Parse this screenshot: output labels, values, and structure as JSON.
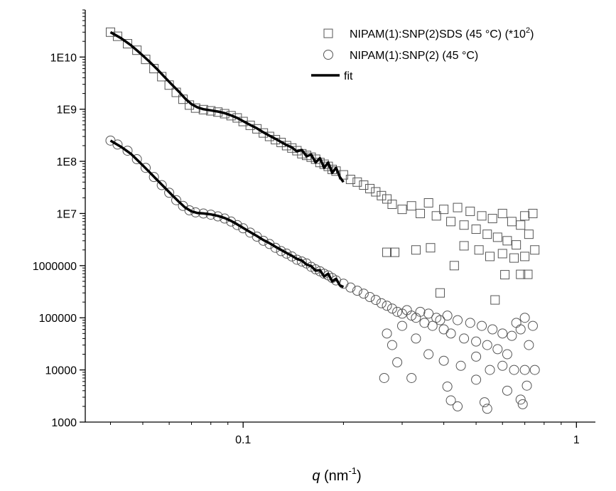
{
  "chart_data": {
    "type": "scatter",
    "title": "",
    "xlabel": {
      "symbol": "q",
      "unit_base": " (nm",
      "unit_exp": "-1",
      "unit_close": ")"
    },
    "ylabel": "",
    "x_scale": "log",
    "y_scale": "log",
    "xlim": [
      0.0336,
      1.14
    ],
    "ylim": [
      1000,
      80000000000
    ],
    "x_ticks": [
      {
        "value": 0.1,
        "label": "0.1"
      },
      {
        "value": 1,
        "label": "1"
      }
    ],
    "y_ticks": [
      {
        "value": 1000,
        "label": "1000"
      },
      {
        "value": 10000,
        "label": "10000"
      },
      {
        "value": 100000,
        "label": "100000"
      },
      {
        "value": 1000000,
        "label": "1000000"
      },
      {
        "value": 10000000,
        "label": "1E7"
      },
      {
        "value": 100000000,
        "label": "1E8"
      },
      {
        "value": 1000000000,
        "label": "1E9"
      },
      {
        "value": 10000000000,
        "label": "1E10"
      }
    ],
    "grid": false,
    "legend_position": "top-right",
    "series": [
      {
        "name_base": "NIPAM(1):SNP(2)SDS (45 °C) (*10",
        "name_exp": "2",
        "name_close": ")",
        "marker": "open-square",
        "points": [
          [
            0.04,
            30000000000.0
          ],
          [
            0.042,
            25000000000.0
          ],
          [
            0.045,
            18000000000.0
          ],
          [
            0.048,
            13500000000.0
          ],
          [
            0.051,
            9000000000.0
          ],
          [
            0.054,
            6000000000.0
          ],
          [
            0.057,
            4200000000.0
          ],
          [
            0.06,
            2900000000.0
          ],
          [
            0.063,
            2100000000.0
          ],
          [
            0.066,
            1550000000.0
          ],
          [
            0.069,
            1200000000.0
          ],
          [
            0.072,
            1050000000.0
          ],
          [
            0.076,
            980000000.0
          ],
          [
            0.08,
            930000000.0
          ],
          [
            0.084,
            880000000.0
          ],
          [
            0.088,
            820000000.0
          ],
          [
            0.092,
            750000000.0
          ],
          [
            0.096,
            680000000.0
          ],
          [
            0.1,
            580000000.0
          ],
          [
            0.105,
            490000000.0
          ],
          [
            0.11,
            420000000.0
          ],
          [
            0.115,
            350000000.0
          ],
          [
            0.12,
            300000000.0
          ],
          [
            0.125,
            260000000.0
          ],
          [
            0.13,
            230000000.0
          ],
          [
            0.135,
            200000000.0
          ],
          [
            0.14,
            180000000.0
          ],
          [
            0.145,
            160000000.0
          ],
          [
            0.15,
            140000000.0
          ],
          [
            0.155,
            130000000.0
          ],
          [
            0.16,
            120000000.0
          ],
          [
            0.165,
            110000000.0
          ],
          [
            0.17,
            95000000.0
          ],
          [
            0.175,
            88000000.0
          ],
          [
            0.18,
            80000000.0
          ],
          [
            0.185,
            70000000.0
          ],
          [
            0.19,
            65000000.0
          ],
          [
            0.2,
            55000000.0
          ],
          [
            0.21,
            45000000.0
          ],
          [
            0.22,
            40000000.0
          ],
          [
            0.23,
            35000000.0
          ],
          [
            0.24,
            30000000.0
          ],
          [
            0.25,
            26000000.0
          ],
          [
            0.26,
            22000000.0
          ],
          [
            0.27,
            19000000.0
          ],
          [
            0.28,
            15000000.0
          ],
          [
            0.3,
            12000000.0
          ],
          [
            0.32,
            14000000.0
          ],
          [
            0.34,
            10000000.0
          ],
          [
            0.36,
            16000000.0
          ],
          [
            0.38,
            9000000.0
          ],
          [
            0.4,
            12000000.0
          ],
          [
            0.42,
            7000000.0
          ],
          [
            0.44,
            13000000.0
          ],
          [
            0.46,
            6000000.0
          ],
          [
            0.48,
            11000000.0
          ],
          [
            0.5,
            5000000.0
          ],
          [
            0.52,
            9000000.0
          ],
          [
            0.54,
            4000000.0
          ],
          [
            0.56,
            8000000.0
          ],
          [
            0.58,
            3500000.0
          ],
          [
            0.6,
            10000000.0
          ],
          [
            0.62,
            3000000.0
          ],
          [
            0.64,
            7000000.0
          ],
          [
            0.66,
            2500000.0
          ],
          [
            0.68,
            6000000.0
          ],
          [
            0.7,
            9000000.0
          ],
          [
            0.72,
            4000000.0
          ],
          [
            0.74,
            10000000.0
          ],
          [
            0.27,
            1800000.0
          ],
          [
            0.285,
            1800000.0
          ],
          [
            0.33,
            2000000.0
          ],
          [
            0.365,
            2200000.0
          ],
          [
            0.46,
            2400000.0
          ],
          [
            0.51,
            2000000.0
          ],
          [
            0.55,
            1500000.0
          ],
          [
            0.6,
            1700000.0
          ],
          [
            0.65,
            1400000.0
          ],
          [
            0.7,
            1500000.0
          ],
          [
            0.75,
            2000000.0
          ],
          [
            0.43,
            1000000.0
          ],
          [
            0.39,
            300000.0
          ],
          [
            0.57,
            220000.0
          ],
          [
            0.61,
            670000.0
          ],
          [
            0.68,
            680000.0
          ],
          [
            0.715,
            680000.0
          ]
        ]
      },
      {
        "name": "NIPAM(1):SNP(2) (45 °C)",
        "marker": "open-circle",
        "points": [
          [
            0.04,
            250000000.0
          ],
          [
            0.042,
            210000000.0
          ],
          [
            0.045,
            160000000.0
          ],
          [
            0.048,
            110000000.0
          ],
          [
            0.051,
            75000000.0
          ],
          [
            0.054,
            50000000.0
          ],
          [
            0.057,
            35000000.0
          ],
          [
            0.06,
            25000000.0
          ],
          [
            0.063,
            18000000.0
          ],
          [
            0.066,
            14000000.0
          ],
          [
            0.069,
            11500000.0
          ],
          [
            0.072,
            10500000.0
          ],
          [
            0.076,
            10000000.0
          ],
          [
            0.08,
            9500000.0
          ],
          [
            0.084,
            8800000.0
          ],
          [
            0.088,
            8000000.0
          ],
          [
            0.092,
            7000000.0
          ],
          [
            0.096,
            6000000.0
          ],
          [
            0.1,
            5200000.0
          ],
          [
            0.105,
            4300000.0
          ],
          [
            0.11,
            3600000.0
          ],
          [
            0.115,
            3000000.0
          ],
          [
            0.12,
            2600000.0
          ],
          [
            0.125,
            2200000.0
          ],
          [
            0.13,
            1900000.0
          ],
          [
            0.135,
            1700000.0
          ],
          [
            0.14,
            1500000.0
          ],
          [
            0.145,
            1300000.0
          ],
          [
            0.15,
            1200000.0
          ],
          [
            0.155,
            1100000.0
          ],
          [
            0.16,
            950000.0
          ],
          [
            0.165,
            850000.0
          ],
          [
            0.17,
            780000.0
          ],
          [
            0.175,
            700000.0
          ],
          [
            0.18,
            650000.0
          ],
          [
            0.185,
            580000.0
          ],
          [
            0.19,
            520000.0
          ],
          [
            0.2,
            450000.0
          ],
          [
            0.21,
            380000.0
          ],
          [
            0.22,
            330000.0
          ],
          [
            0.23,
            290000.0
          ],
          [
            0.24,
            250000.0
          ],
          [
            0.25,
            220000.0
          ],
          [
            0.26,
            190000.0
          ],
          [
            0.27,
            170000.0
          ],
          [
            0.28,
            150000.0
          ],
          [
            0.29,
            130000.0
          ],
          [
            0.3,
            120000.0
          ],
          [
            0.31,
            140000.0
          ],
          [
            0.32,
            110000.0
          ],
          [
            0.33,
            100000.0
          ],
          [
            0.34,
            130000.0
          ],
          [
            0.35,
            80000.0
          ],
          [
            0.36,
            120000.0
          ],
          [
            0.37,
            70000.0
          ],
          [
            0.38,
            100000.0
          ],
          [
            0.39,
            90000.0
          ],
          [
            0.4,
            60000.0
          ],
          [
            0.41,
            110000.0
          ],
          [
            0.42,
            50000.0
          ],
          [
            0.44,
            90000.0
          ],
          [
            0.46,
            40000.0
          ],
          [
            0.48,
            80000.0
          ],
          [
            0.5,
            35000.0
          ],
          [
            0.52,
            70000.0
          ],
          [
            0.54,
            30000.0
          ],
          [
            0.56,
            60000.0
          ],
          [
            0.58,
            25000.0
          ],
          [
            0.6,
            50000.0
          ],
          [
            0.62,
            20000.0
          ],
          [
            0.64,
            45000.0
          ],
          [
            0.66,
            80000.0
          ],
          [
            0.68,
            60000.0
          ],
          [
            0.7,
            100000.0
          ],
          [
            0.72,
            30000.0
          ],
          [
            0.74,
            70000.0
          ],
          [
            0.27,
            50000.0
          ],
          [
            0.28,
            30000.0
          ],
          [
            0.3,
            70000.0
          ],
          [
            0.33,
            40000.0
          ],
          [
            0.36,
            20000.0
          ],
          [
            0.4,
            15000.0
          ],
          [
            0.45,
            12000.0
          ],
          [
            0.5,
            18000.0
          ],
          [
            0.55,
            10000.0
          ],
          [
            0.6,
            12000.0
          ],
          [
            0.65,
            10000.0
          ],
          [
            0.7,
            10000.0
          ],
          [
            0.75,
            10000.0
          ],
          [
            0.265,
            7000.0
          ],
          [
            0.29,
            14000.0
          ],
          [
            0.32,
            7000.0
          ],
          [
            0.41,
            4800.0
          ],
          [
            0.42,
            2600.0
          ],
          [
            0.44,
            2000.0
          ],
          [
            0.5,
            6500.0
          ],
          [
            0.53,
            2400.0
          ],
          [
            0.54,
            1800.0
          ],
          [
            0.62,
            4000.0
          ],
          [
            0.68,
            2700.0
          ],
          [
            0.69,
            2200.0
          ],
          [
            0.71,
            5000.0
          ]
        ]
      },
      {
        "name": "fit",
        "line": true,
        "segments": [
          [
            [
              0.04,
              30000000000.0
            ],
            [
              0.043,
              23000000000.0
            ],
            [
              0.046,
              17000000000.0
            ],
            [
              0.049,
              12000000000.0
            ],
            [
              0.052,
              8500000000.0
            ],
            [
              0.055,
              6000000000.0
            ],
            [
              0.058,
              4200000000.0
            ],
            [
              0.061,
              3000000000.0
            ],
            [
              0.064,
              2200000000.0
            ],
            [
              0.067,
              1600000000.0
            ],
            [
              0.07,
              1250000000.0
            ],
            [
              0.073,
              1080000000.0
            ],
            [
              0.076,
              1000000000.0
            ],
            [
              0.08,
              950000000.0
            ],
            [
              0.084,
              900000000.0
            ],
            [
              0.088,
              840000000.0
            ],
            [
              0.092,
              760000000.0
            ],
            [
              0.096,
              680000000.0
            ],
            [
              0.1,
              590000000.0
            ],
            [
              0.105,
              500000000.0
            ],
            [
              0.11,
              430000000.0
            ],
            [
              0.115,
              360000000.0
            ],
            [
              0.12,
              310000000.0
            ],
            [
              0.125,
              270000000.0
            ],
            [
              0.13,
              235000000.0
            ],
            [
              0.135,
              205000000.0
            ],
            [
              0.14,
              185000000.0
            ],
            [
              0.145,
              155000000.0
            ],
            [
              0.15,
              165000000.0
            ],
            [
              0.155,
              125000000.0
            ],
            [
              0.16,
              135000000.0
            ],
            [
              0.165,
              95000000.0
            ],
            [
              0.17,
              115000000.0
            ],
            [
              0.175,
              75000000.0
            ],
            [
              0.18,
              95000000.0
            ],
            [
              0.185,
              60000000.0
            ],
            [
              0.19,
              75000000.0
            ],
            [
              0.195,
              50000000.0
            ],
            [
              0.2,
              40000000.0
            ]
          ],
          [
            [
              0.04,
              250000000.0
            ],
            [
              0.043,
              190000000.0
            ],
            [
              0.046,
              140000000.0
            ],
            [
              0.049,
              95000000.0
            ],
            [
              0.052,
              65000000.0
            ],
            [
              0.055,
              45000000.0
            ],
            [
              0.058,
              32000000.0
            ],
            [
              0.061,
              23000000.0
            ],
            [
              0.064,
              17000000.0
            ],
            [
              0.067,
              13000000.0
            ],
            [
              0.07,
              11000000.0
            ],
            [
              0.073,
              10200000.0
            ],
            [
              0.076,
              10000000.0
            ],
            [
              0.08,
              9600000.0
            ],
            [
              0.084,
              9000000.0
            ],
            [
              0.088,
              8200000.0
            ],
            [
              0.092,
              7200000.0
            ],
            [
              0.096,
              6200000.0
            ],
            [
              0.1,
              5300000.0
            ],
            [
              0.105,
              4400000.0
            ],
            [
              0.11,
              3700000.0
            ],
            [
              0.115,
              3100000.0
            ],
            [
              0.12,
              2700000.0
            ],
            [
              0.125,
              2300000.0
            ],
            [
              0.13,
              2000000.0
            ],
            [
              0.135,
              1750000.0
            ],
            [
              0.14,
              1550000.0
            ],
            [
              0.145,
              1350000.0
            ],
            [
              0.15,
              1250000.0
            ],
            [
              0.155,
              1050000.0
            ],
            [
              0.16,
              980000.0
            ],
            [
              0.165,
              800000.0
            ],
            [
              0.17,
              820000.0
            ],
            [
              0.175,
              620000.0
            ],
            [
              0.18,
              700000.0
            ],
            [
              0.185,
              500000.0
            ],
            [
              0.19,
              560000.0
            ],
            [
              0.195,
              420000.0
            ],
            [
              0.2,
              390000.0
            ]
          ]
        ]
      }
    ]
  }
}
